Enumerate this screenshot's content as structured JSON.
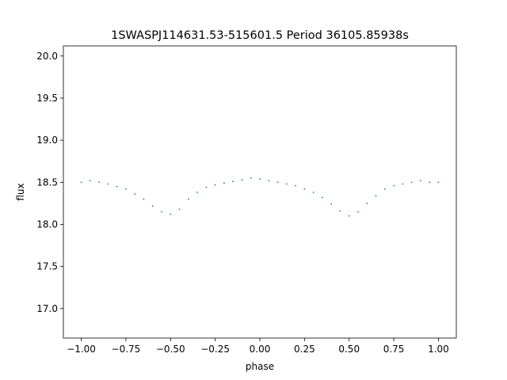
{
  "chart_data": {
    "type": "scatter",
    "title": "1SWASPJ114631.53-515601.5 Period 36105.85938s",
    "xlabel": "phase",
    "ylabel": "flux",
    "xlim": [
      -1.1,
      1.1
    ],
    "ylim": [
      16.65,
      20.12
    ],
    "x_ticks": [
      -1.0,
      -0.75,
      -0.5,
      -0.25,
      0.0,
      0.25,
      0.5,
      0.75,
      1.0
    ],
    "x_tick_labels": [
      "−1.00",
      "−0.75",
      "−0.50",
      "−0.25",
      "0.00",
      "0.25",
      "0.50",
      "0.75",
      "1.00"
    ],
    "y_ticks": [
      17.0,
      17.5,
      18.0,
      18.5,
      19.0,
      19.5,
      20.0
    ],
    "y_tick_labels": [
      "17.0",
      "17.5",
      "18.0",
      "18.5",
      "19.0",
      "19.5",
      "20.0"
    ],
    "grid": false,
    "point_color": "#1f77b4",
    "series": [
      {
        "x": [
          -1.0,
          -0.95,
          -0.9,
          -0.85,
          -0.8,
          -0.75,
          -0.7,
          -0.65,
          -0.6,
          -0.55,
          -0.5,
          -0.45,
          -0.4,
          -0.35,
          -0.3,
          -0.25,
          -0.2,
          -0.15,
          -0.1,
          -0.05,
          0.0,
          0.05,
          0.1,
          0.15,
          0.2,
          0.25,
          0.3,
          0.35,
          0.4,
          0.45,
          0.5,
          0.55,
          0.6,
          0.65,
          0.7,
          0.75,
          0.8,
          0.85,
          0.9,
          0.95,
          1.0
        ],
        "y": [
          18.5,
          18.52,
          18.5,
          18.48,
          18.45,
          18.42,
          18.36,
          18.3,
          18.22,
          18.15,
          18.12,
          18.18,
          18.3,
          18.38,
          18.44,
          18.47,
          18.49,
          18.51,
          18.53,
          18.55,
          18.54,
          18.52,
          18.5,
          18.48,
          18.46,
          18.42,
          18.38,
          18.32,
          18.24,
          18.16,
          18.1,
          18.15,
          18.25,
          18.34,
          18.42,
          18.46,
          18.48,
          18.5,
          18.52,
          18.5,
          18.5
        ]
      }
    ]
  }
}
